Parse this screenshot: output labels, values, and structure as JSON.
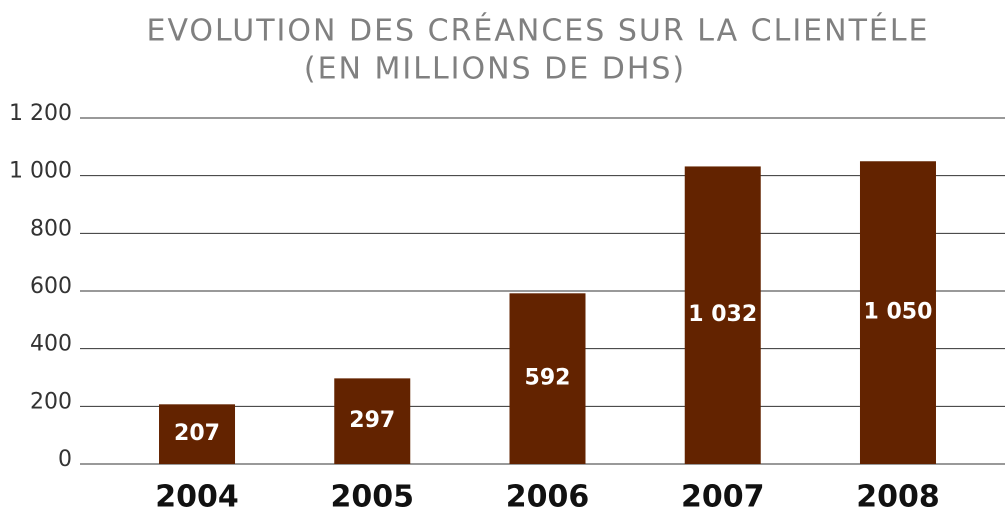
{
  "chart_data": {
    "type": "bar",
    "title": [
      "EVOLUTION DES CRÉANCES SUR LA CLIENTÉLE",
      "(EN MILLIONS DE DHS)"
    ],
    "categories": [
      "2004",
      "2005",
      "2006",
      "2007",
      "2008"
    ],
    "values": [
      207,
      297,
      592,
      1032,
      1050
    ],
    "value_labels": [
      "207",
      "297",
      "592",
      "1 032",
      "1 050"
    ],
    "color": "#632300",
    "ylim": [
      0,
      1200
    ],
    "yticks": [
      0,
      200,
      400,
      600,
      800,
      {
        "value": 1000,
        "label": "1 000"
      },
      {
        "value": 1200,
        "label": "1 200"
      }
    ],
    "grid": true
  }
}
